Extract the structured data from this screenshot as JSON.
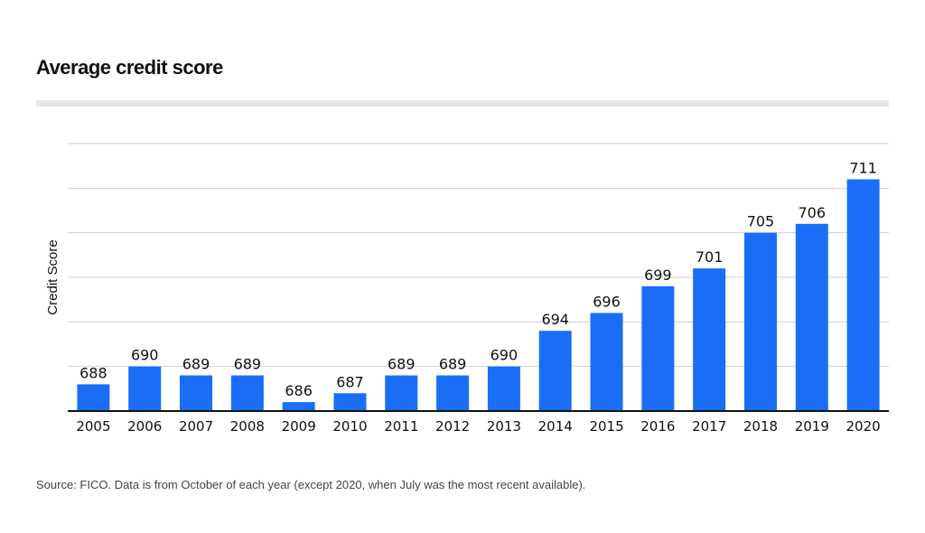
{
  "chart_data": {
    "type": "bar",
    "title": "Average credit score",
    "ylabel": "Credit Score",
    "xlabel": "",
    "categories": [
      "2005",
      "2006",
      "2007",
      "2008",
      "2009",
      "2010",
      "2011",
      "2012",
      "2013",
      "2014",
      "2015",
      "2016",
      "2017",
      "2018",
      "2019",
      "2020"
    ],
    "values": [
      688,
      690,
      689,
      689,
      686,
      687,
      689,
      689,
      690,
      694,
      696,
      699,
      701,
      705,
      706,
      711
    ],
    "ylim": [
      685,
      715
    ],
    "yticks": [
      685,
      690,
      695,
      700,
      705,
      710,
      715
    ],
    "grid": true,
    "bar_color": "#1a6ef5",
    "source": "Source: FICO. Data is from October of each year (except 2020, when July was the most recent available)."
  }
}
